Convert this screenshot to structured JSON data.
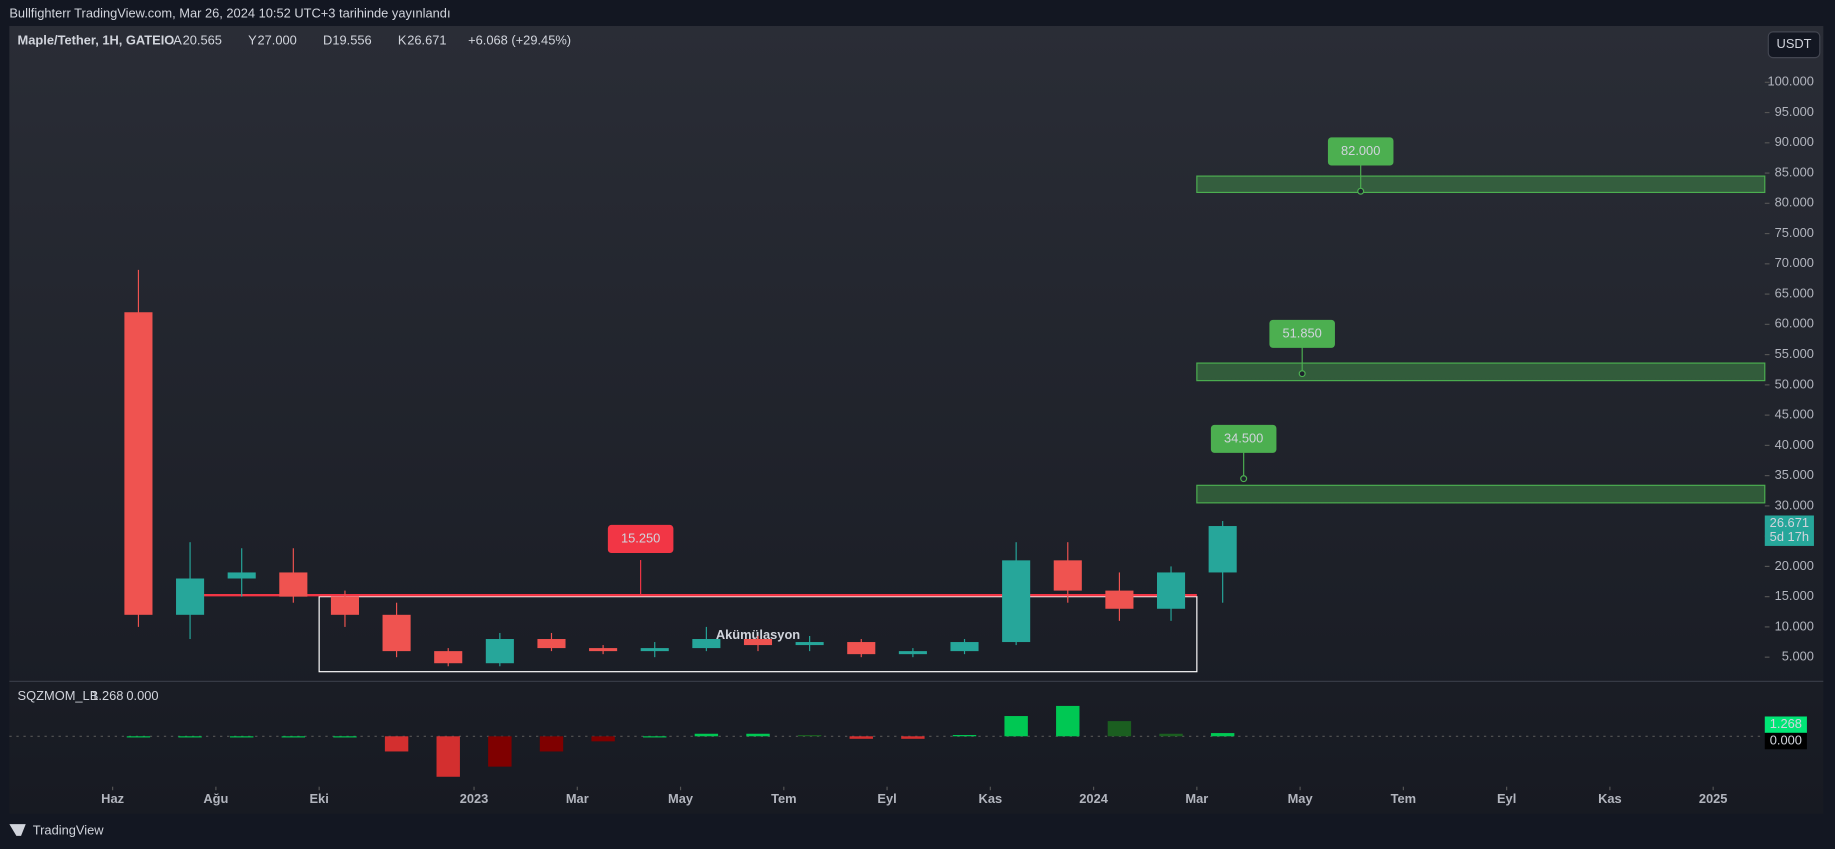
{
  "header": {
    "caption": "Bullfighterr TradingView.com, Mar 26, 2024 10:52 UTC+3 tarihinde yayınlandı",
    "symbol": "Maple/Tether, 1H, GATEIO",
    "legend": [
      {
        "key": "A",
        "value": "20.565"
      },
      {
        "key": "Y",
        "value": "27.000"
      },
      {
        "key": "D",
        "value": "19.556"
      },
      {
        "key": "K",
        "value": "26.671"
      }
    ],
    "change": "+6.068 (+29.45%)",
    "currency": "USDT"
  },
  "footer": {
    "brand": "TradingView"
  },
  "chart_data": {
    "type": "candlestick",
    "x": [
      "2022-06",
      "2022-07",
      "2022-08",
      "2022-09",
      "2022-10",
      "2022-11",
      "2022-12",
      "2023-01",
      "2023-02",
      "2023-03",
      "2023-04",
      "2023-05",
      "2023-06",
      "2023-07",
      "2023-08",
      "2023-09",
      "2023-10",
      "2023-11",
      "2023-12",
      "2024-01",
      "2024-02",
      "2024-03"
    ],
    "open": [
      62,
      12,
      18,
      19,
      15,
      12,
      6,
      4,
      8,
      6.5,
      6,
      6.5,
      8,
      7,
      7.5,
      5.5,
      6,
      7.5,
      21,
      16,
      13,
      19
    ],
    "high": [
      69,
      24,
      23,
      23,
      16,
      14,
      6.5,
      9,
      9,
      7,
      7.5,
      10,
      8.5,
      8.5,
      8,
      6.5,
      8,
      24,
      24,
      19,
      20,
      27.5
    ],
    "low": [
      10,
      8,
      15,
      14,
      10,
      5,
      3.5,
      3.5,
      6,
      5.5,
      5,
      6,
      6,
      6,
      5,
      5,
      5.5,
      7,
      14,
      11,
      11,
      14
    ],
    "close": [
      12,
      18,
      19,
      15,
      12,
      6,
      4,
      8,
      6.5,
      6,
      6.5,
      8,
      7,
      7.5,
      5.5,
      6,
      7.5,
      21,
      16,
      13,
      19,
      26.671
    ],
    "up_color": "#26a69a",
    "down_color": "#ef5350",
    "xlim": [
      "2022-04",
      "2025-02"
    ],
    "xticks": [
      {
        "value": "2022-06",
        "label": "Haz"
      },
      {
        "value": "2022-08",
        "label": "Ağu"
      },
      {
        "value": "2022-10",
        "label": "Eki"
      },
      {
        "value": "2023-01",
        "label": "2023"
      },
      {
        "value": "2023-03",
        "label": "Mar"
      },
      {
        "value": "2023-05",
        "label": "May"
      },
      {
        "value": "2023-07",
        "label": "Tem"
      },
      {
        "value": "2023-09",
        "label": "Eyl"
      },
      {
        "value": "2023-11",
        "label": "Kas"
      },
      {
        "value": "2024-01",
        "label": "2024"
      },
      {
        "value": "2024-03",
        "label": "Mar"
      },
      {
        "value": "2024-05",
        "label": "May"
      },
      {
        "value": "2024-07",
        "label": "Tem"
      },
      {
        "value": "2024-09",
        "label": "Eyl"
      },
      {
        "value": "2024-11",
        "label": "Kas"
      },
      {
        "value": "2025-01",
        "label": "2025"
      }
    ],
    "ylim": [
      1,
      109.3
    ],
    "yticks": [
      {
        "value": 5,
        "label": "5.000"
      },
      {
        "value": 10,
        "label": "10.000"
      },
      {
        "value": 15,
        "label": "15.000"
      },
      {
        "value": 20,
        "label": "20.000"
      },
      {
        "value": 25,
        "label": "25.000"
      },
      {
        "value": 30,
        "label": "30.000"
      },
      {
        "value": 35,
        "label": "35.000"
      },
      {
        "value": 40,
        "label": "40.000"
      },
      {
        "value": 45,
        "label": "45.000"
      },
      {
        "value": 50,
        "label": "50.000"
      },
      {
        "value": 55,
        "label": "55.000"
      },
      {
        "value": 60,
        "label": "60.000"
      },
      {
        "value": 65,
        "label": "65.000"
      },
      {
        "value": 70,
        "label": "70.000"
      },
      {
        "value": 75,
        "label": "75.000"
      },
      {
        "value": 80,
        "label": "80.000"
      },
      {
        "value": 85,
        "label": "85.000"
      },
      {
        "value": 90,
        "label": "90.000"
      },
      {
        "value": 95,
        "label": "95.000"
      },
      {
        "value": 100,
        "label": "100.000"
      }
    ],
    "last_price": {
      "value": 26.671,
      "countdown": "5d 17h"
    },
    "level": {
      "value": 15.25,
      "label": "15.250",
      "color": "#f23645"
    },
    "targets": [
      {
        "value": 82,
        "label": "82.000",
        "range": [
          81.8,
          84.5
        ],
        "start": "2024-03"
      },
      {
        "value": 51.85,
        "label": "51.850",
        "range": [
          50.7,
          53.6
        ],
        "start": "2024-03"
      },
      {
        "value": 34.5,
        "label": "34.500",
        "range": [
          30.5,
          33.4
        ],
        "start": "2024-03"
      }
    ],
    "target_color": "#4caf50",
    "box": {
      "label": "Akümülasyon",
      "range": [
        2.6,
        15
      ],
      "x": [
        "2022-10",
        "2024-03"
      ]
    },
    "indicator": {
      "name": "SQZMOM_LB",
      "value": 1.268,
      "signal": {
        "value": 0,
        "label": "0.000"
      },
      "values": [
        0,
        0,
        0,
        0,
        0,
        -6,
        -16,
        -12,
        -6,
        -2,
        0,
        1,
        1,
        0.5,
        -1,
        -1,
        0.5,
        8,
        12,
        6,
        1,
        1.268
      ],
      "ylim": [
        -19,
        18
      ]
    }
  }
}
